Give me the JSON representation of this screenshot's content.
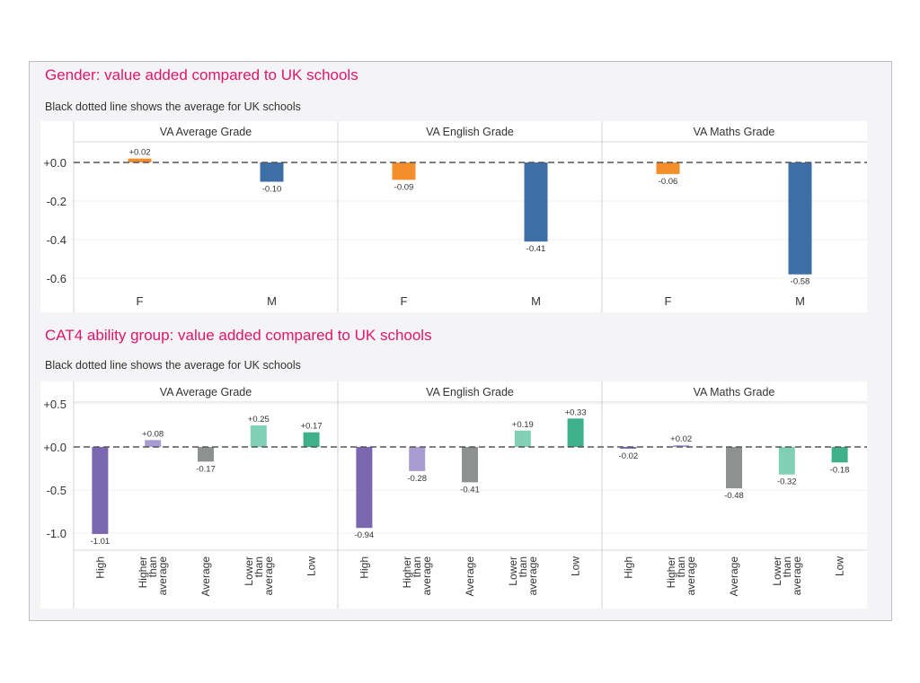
{
  "chart_data": [
    {
      "type": "bar",
      "title": "Gender: value added compared to UK schools",
      "subtitle": "Black dotted line shows the average for UK schools",
      "panels": [
        "VA Average Grade",
        "VA English Grade",
        "VA Maths Grade"
      ],
      "categories": [
        "F",
        "M"
      ],
      "colors": [
        "#f28e2b",
        "#3d6fa6"
      ],
      "values": [
        [
          0.02,
          -0.1
        ],
        [
          -0.09,
          -0.41
        ],
        [
          -0.06,
          -0.58
        ]
      ],
      "labels": [
        [
          "+0.02",
          "-0.10"
        ],
        [
          "-0.09",
          "-0.41"
        ],
        [
          "-0.06",
          "-0.58"
        ]
      ],
      "yticks": [
        "+0.0",
        "-0.2",
        "-0.4",
        "-0.6"
      ],
      "ytick_values": [
        0,
        -0.2,
        -0.4,
        -0.6
      ],
      "ylim": [
        -0.7,
        0.1
      ],
      "reference_line": 0,
      "grid": true
    },
    {
      "type": "bar",
      "title": "CAT4 ability group: value added compared to UK schools",
      "subtitle": "Black dotted line shows the average for UK schools",
      "panels": [
        "VA Average Grade",
        "VA English Grade",
        "VA Maths Grade"
      ],
      "categories": [
        "High",
        "Higher than average",
        "Average",
        "Lower than average",
        "Low"
      ],
      "colors": [
        "#7b66b0",
        "#a99cd2",
        "#8d9291",
        "#80d0b6",
        "#3fb08a"
      ],
      "values": [
        [
          -1.01,
          0.08,
          -0.17,
          0.25,
          0.17
        ],
        [
          -0.94,
          -0.28,
          -0.41,
          0.19,
          0.33
        ],
        [
          -0.02,
          0.02,
          -0.48,
          -0.32,
          -0.18
        ]
      ],
      "labels": [
        [
          "-1.01",
          "+0.08",
          "-0.17",
          "+0.25",
          "+0.17"
        ],
        [
          "-0.94",
          "-0.28",
          "-0.41",
          "+0.19",
          "+0.33"
        ],
        [
          "-0.02",
          "+0.02",
          "-0.48",
          "-0.32",
          "-0.18"
        ]
      ],
      "yticks": [
        "+0.5",
        "+0.0",
        "-0.5",
        "-1.0"
      ],
      "ytick_values": [
        0.5,
        0,
        -0.5,
        -1.0
      ],
      "ylim": [
        -1.2,
        0.6
      ],
      "reference_line": 0,
      "grid": true
    }
  ]
}
